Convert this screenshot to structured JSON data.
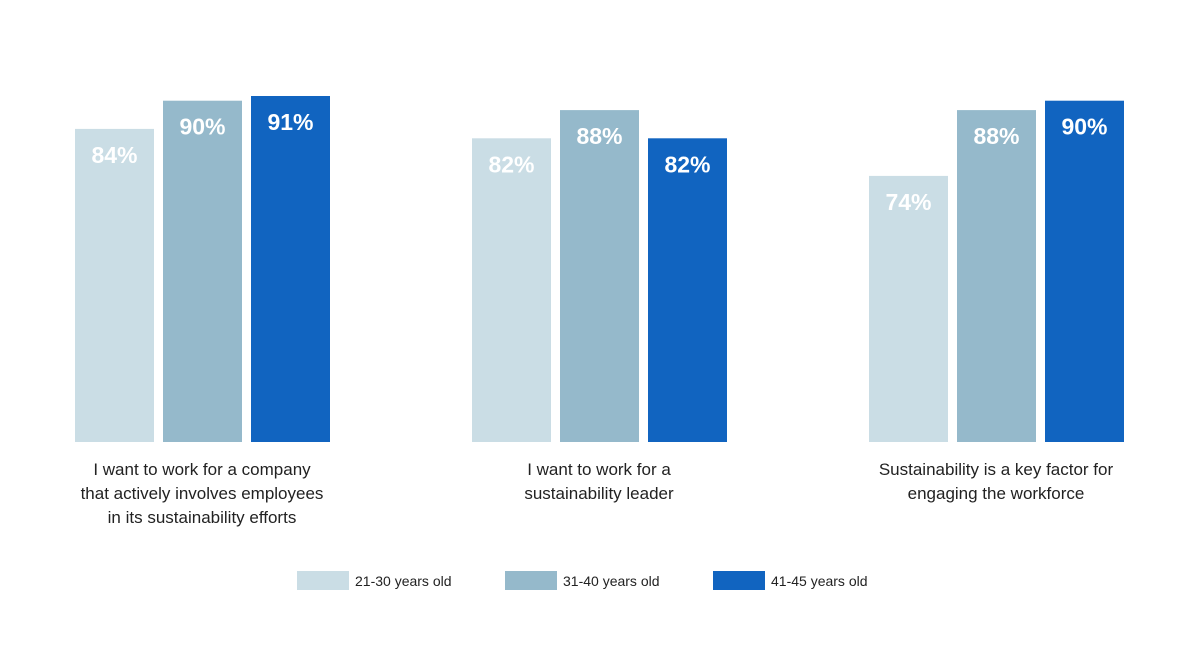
{
  "chart_data": {
    "type": "bar",
    "categories": [
      "I want to work for a company that actively involves employees in its sustainability efforts",
      "I want to work for a sustainability leader",
      "Sustainability is a key factor for engaging the workforce"
    ],
    "category_lines": [
      [
        "I want to work for a company",
        "that actively involves employees",
        "in its sustainability efforts"
      ],
      [
        "I want to work for a",
        "sustainability leader"
      ],
      [
        "Sustainability is a key factor for",
        "engaging the workforce"
      ]
    ],
    "series": [
      {
        "name": "21-30 years old",
        "values": [
          84,
          82,
          74
        ],
        "color": "#CADDE5"
      },
      {
        "name": "31-40 years old",
        "values": [
          90,
          88,
          88
        ],
        "color": "#95B9CB"
      },
      {
        "name": "41-45 years old",
        "values": [
          91,
          82,
          90
        ],
        "color": "#1164C0"
      }
    ],
    "value_format": "percent",
    "data_labels": true,
    "grid": false,
    "legend": "bottom",
    "title": "",
    "xlabel": "",
    "ylabel": ""
  }
}
